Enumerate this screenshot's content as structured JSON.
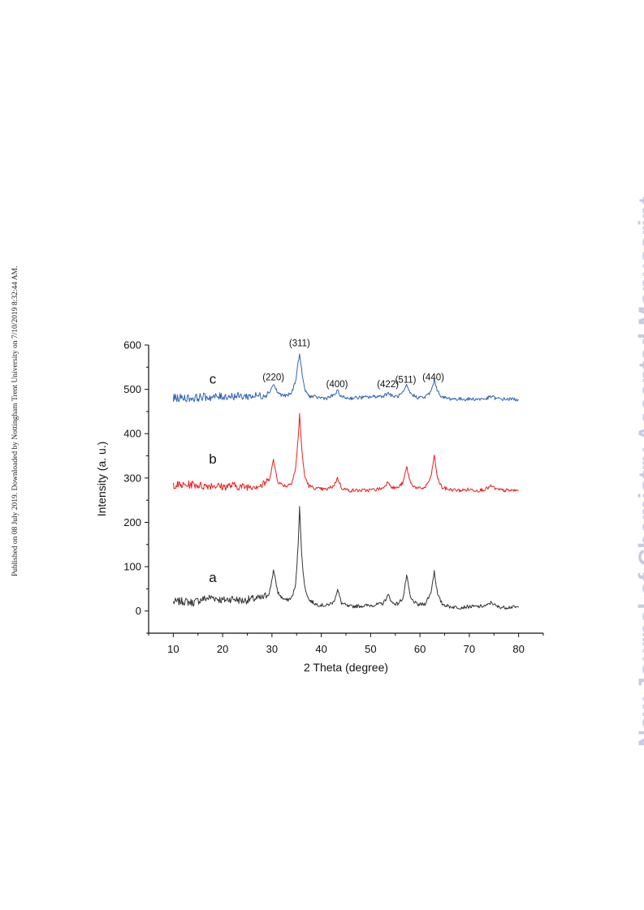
{
  "side_note": "Published on 08 July 2019. Downloaded by Nottingham Trent University on 7/10/2019 8:32:44 AM.",
  "watermark": {
    "text": "New Journal of Chemistry Accepted Manuscript",
    "color": "#c8cbe0"
  },
  "chart_data": {
    "type": "line",
    "title": "",
    "xlabel": "2 Theta (degree)",
    "ylabel": "Intensity (a. u.)",
    "xlim": [
      5,
      85
    ],
    "ylim": [
      -50,
      600
    ],
    "xticks": [
      10,
      20,
      30,
      40,
      50,
      60,
      70,
      80
    ],
    "yticks": [
      0,
      100,
      200,
      300,
      400,
      500,
      600
    ],
    "grid": false,
    "peak_labels": [
      {
        "text": "(220)",
        "x": 30.3,
        "y": 520
      },
      {
        "text": "(311)",
        "x": 35.6,
        "y": 597
      },
      {
        "text": "(400)",
        "x": 43.2,
        "y": 505
      },
      {
        "text": "(422)",
        "x": 53.5,
        "y": 505
      },
      {
        "text": "(511)",
        "x": 57.1,
        "y": 515
      },
      {
        "text": "(440)",
        "x": 62.7,
        "y": 520
      }
    ],
    "series": [
      {
        "name": "a",
        "color": "#333333",
        "label_x": 18,
        "label_y": 65,
        "x": [
          10,
          12,
          14,
          16,
          18,
          20,
          22,
          24,
          26,
          28,
          29.5,
          30.3,
          31.2,
          32,
          33,
          34,
          34.8,
          35.3,
          35.6,
          36.0,
          36.6,
          37.5,
          39,
          41,
          42.5,
          43.3,
          44.1,
          45.5,
          47,
          49,
          51,
          52.5,
          53.6,
          54.4,
          55.5,
          56.6,
          57.3,
          58.1,
          59.5,
          61,
          62.2,
          62.9,
          63.6,
          64.5,
          66,
          68,
          70,
          72,
          73.5,
          74.5,
          75.5,
          77,
          78.5,
          80
        ],
        "y": [
          20,
          22,
          19,
          27,
          31,
          24,
          28,
          23,
          27,
          29,
          40,
          92,
          42,
          30,
          24,
          30,
          58,
          148,
          238,
          130,
          56,
          25,
          15,
          12,
          20,
          48,
          18,
          10,
          11,
          12,
          14,
          17,
          36,
          18,
          16,
          30,
          80,
          28,
          14,
          16,
          40,
          90,
          36,
          16,
          10,
          8,
          10,
          10,
          12,
          20,
          10,
          8,
          9,
          8
        ]
      },
      {
        "name": "b",
        "color": "#e8201e",
        "label_x": 18,
        "label_y": 333,
        "x": [
          10,
          12,
          14,
          16,
          18,
          20,
          22,
          24,
          26,
          28,
          29.5,
          30.3,
          31.2,
          32,
          33,
          34,
          34.8,
          35.3,
          35.6,
          36.0,
          36.6,
          37.5,
          39,
          41,
          42.5,
          43.3,
          44.1,
          45.5,
          47,
          49,
          51,
          52.5,
          53.6,
          54.4,
          55.5,
          56.6,
          57.3,
          58.1,
          59.5,
          61,
          62.2,
          62.9,
          63.6,
          64.5,
          66,
          68,
          70,
          72,
          73.5,
          74.5,
          75.5,
          77,
          78.5,
          80
        ],
        "y": [
          285,
          283,
          286,
          282,
          284,
          280,
          283,
          280,
          282,
          283,
          298,
          340,
          292,
          285,
          282,
          290,
          320,
          390,
          445,
          370,
          305,
          282,
          276,
          274,
          282,
          300,
          278,
          272,
          272,
          272,
          274,
          277,
          292,
          278,
          278,
          290,
          325,
          288,
          276,
          278,
          300,
          350,
          298,
          278,
          274,
          272,
          274,
          272,
          276,
          282,
          274,
          272,
          272,
          272
        ]
      },
      {
        "name": "c",
        "color": "#2f63b4",
        "label_x": 18,
        "label_y": 513,
        "x": [
          10,
          12,
          14,
          16,
          18,
          20,
          22,
          24,
          26,
          28,
          29.5,
          30.3,
          31.2,
          32,
          33,
          34,
          34.8,
          35.3,
          35.6,
          36.0,
          36.6,
          37.5,
          39,
          41,
          42.5,
          43.3,
          44.1,
          45.5,
          47,
          49,
          51,
          52.5,
          53.6,
          54.4,
          55.5,
          56.6,
          57.3,
          58.1,
          59.5,
          61,
          62.2,
          62.9,
          63.6,
          64.5,
          66,
          68,
          70,
          72,
          73.5,
          74.5,
          75.5,
          77,
          78.5,
          80
        ],
        "y": [
          480,
          481,
          480,
          483,
          482,
          484,
          485,
          484,
          485,
          486,
          494,
          512,
          492,
          487,
          485,
          492,
          520,
          560,
          580,
          545,
          500,
          485,
          482,
          480,
          486,
          496,
          483,
          480,
          481,
          482,
          484,
          485,
          492,
          484,
          484,
          492,
          508,
          490,
          482,
          482,
          494,
          520,
          496,
          482,
          479,
          478,
          478,
          478,
          479,
          484,
          479,
          478,
          478,
          477
        ]
      }
    ]
  }
}
